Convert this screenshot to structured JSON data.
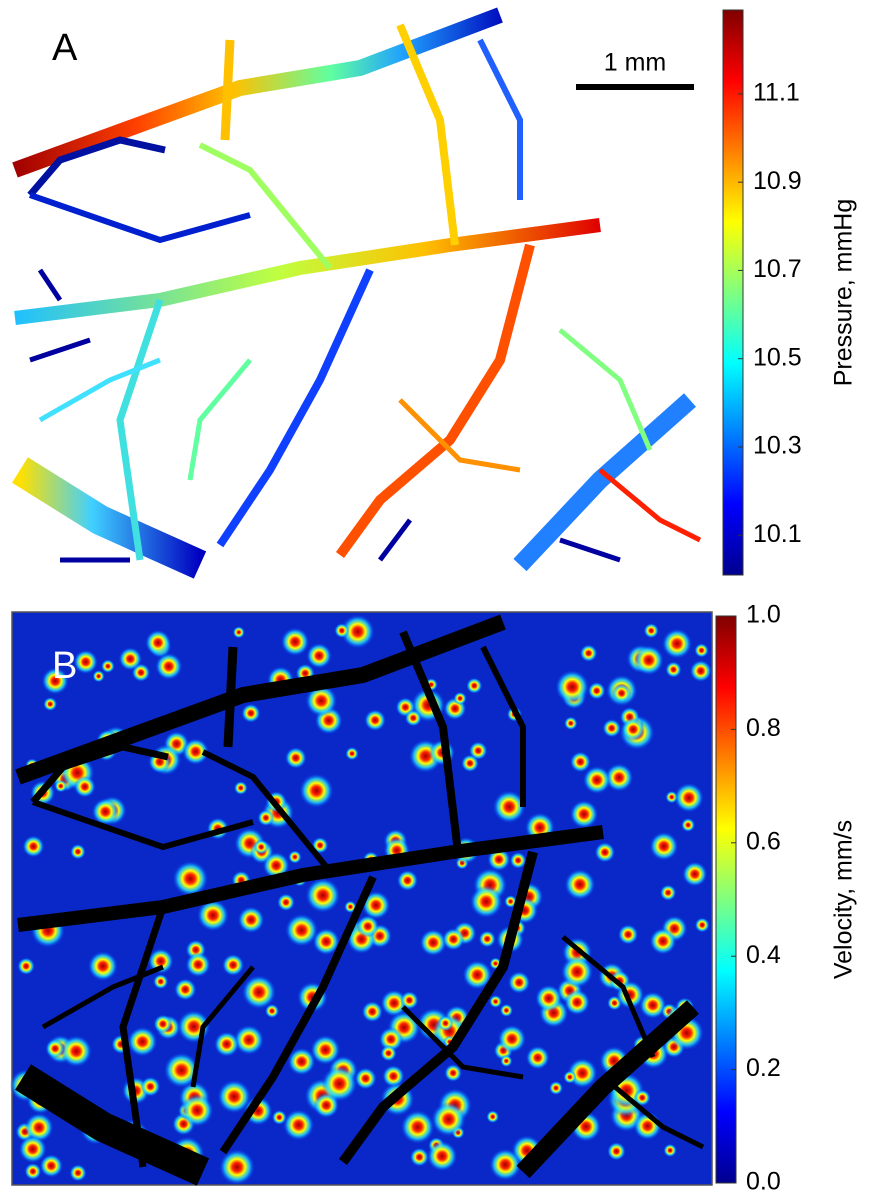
{
  "chart_data": [
    {
      "type": "colormap",
      "label": "A",
      "scale_bar": "1 mm",
      "colorbar_label": "Pressure, mmHg",
      "clim": [
        10.01,
        11.29
      ],
      "ticks": [
        10.1,
        10.3,
        10.5,
        10.7,
        10.9,
        11.1
      ]
    },
    {
      "type": "colormap",
      "label": "B",
      "colorbar_label": "Velocity, mm/s",
      "clim": [
        0,
        1
      ],
      "ticks": [
        {
          "value": 0,
          "label": "0.0"
        },
        0.2,
        0.4,
        0.6,
        0.8,
        {
          "value": 1,
          "label": "1.0"
        }
      ]
    }
  ]
}
